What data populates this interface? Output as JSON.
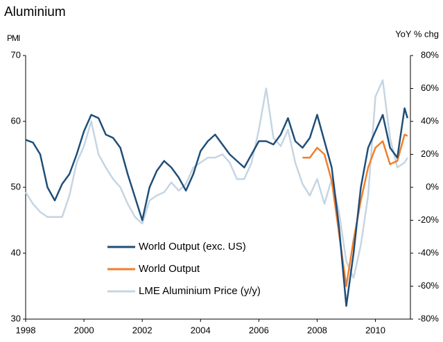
{
  "chart_data": {
    "type": "line",
    "title": "Aluminium",
    "ylabel": "PMI",
    "y2label": "YoY % chg",
    "x": [
      1998,
      1998.25,
      1998.5,
      1998.75,
      1999,
      1999.25,
      1999.5,
      1999.75,
      2000,
      2000.25,
      2000.5,
      2000.75,
      2001,
      2001.25,
      2001.5,
      2001.75,
      2002,
      2002.25,
      2002.5,
      2002.75,
      2003,
      2003.25,
      2003.5,
      2003.75,
      2004,
      2004.25,
      2004.5,
      2004.75,
      2005,
      2005.25,
      2005.5,
      2005.75,
      2006,
      2006.25,
      2006.5,
      2006.75,
      2007,
      2007.25,
      2007.5,
      2007.75,
      2008,
      2008.25,
      2008.5,
      2008.75,
      2009,
      2009.25,
      2009.5,
      2009.75,
      2010,
      2010.25,
      2010.5,
      2010.75,
      2011,
      2011.1
    ],
    "series": [
      {
        "name": "World Output (exc. US)",
        "color": "#1f4e79",
        "axis": "y",
        "values": [
          57.2,
          56.8,
          55,
          50,
          48,
          50.5,
          52,
          55,
          58.5,
          61,
          60.5,
          58,
          57.5,
          56,
          52,
          48.5,
          45,
          50,
          52.5,
          54,
          53,
          51.5,
          49.5,
          52,
          55.5,
          57,
          58,
          56.5,
          55,
          54,
          53,
          55,
          57,
          57,
          56.5,
          58,
          60.5,
          57,
          56,
          57.5,
          61,
          57,
          53,
          44,
          32,
          40,
          50,
          56,
          58.5,
          61,
          56,
          54.5,
          62,
          60.5
        ]
      },
      {
        "name": "World Output",
        "color": "#f07f2a",
        "axis": "y",
        "values": [
          null,
          null,
          null,
          null,
          null,
          null,
          null,
          null,
          null,
          null,
          null,
          null,
          null,
          null,
          null,
          null,
          null,
          null,
          null,
          null,
          null,
          null,
          null,
          null,
          null,
          null,
          null,
          null,
          null,
          null,
          null,
          null,
          null,
          null,
          null,
          null,
          null,
          null,
          54.5,
          54.5,
          56,
          55,
          51,
          43,
          35,
          42,
          48,
          53,
          56,
          57,
          53.5,
          54,
          58,
          57.8
        ]
      },
      {
        "name": "LME Aluminium Price (y/y)",
        "color": "#c5d5e2",
        "axis": "y2",
        "values": [
          -3,
          -10,
          -15,
          -18,
          -18,
          -18,
          -5,
          15,
          25,
          40,
          20,
          12,
          5,
          0,
          -10,
          -18,
          -22,
          -8,
          -5,
          -3,
          3,
          -2,
          2,
          12,
          15,
          18,
          18,
          20,
          15,
          5,
          5,
          15,
          35,
          60,
          30,
          25,
          35,
          15,
          2,
          -5,
          5,
          -10,
          5,
          -15,
          -45,
          -55,
          -35,
          -5,
          55,
          65,
          30,
          12,
          15,
          18
        ]
      }
    ],
    "xlim": [
      1998,
      2011.2
    ],
    "xticks": [
      1998,
      2000,
      2002,
      2004,
      2006,
      2008,
      2010
    ],
    "ylim": [
      30,
      70
    ],
    "yticks": [
      30,
      40,
      50,
      60,
      70
    ],
    "y2lim": [
      -80,
      80
    ],
    "y2ticks": [
      {
        "value": -80,
        "label": "-80%"
      },
      {
        "value": -60,
        "label": "-60%"
      },
      {
        "value": -40,
        "label": "-40%"
      },
      {
        "value": -20,
        "label": "-20%"
      },
      {
        "value": 0,
        "label": "0%"
      },
      {
        "value": 20,
        "label": "20%"
      },
      {
        "value": 40,
        "label": "40%"
      },
      {
        "value": 60,
        "label": "60%"
      },
      {
        "value": 80,
        "label": "80%"
      }
    ],
    "legend": "bottom-center"
  }
}
